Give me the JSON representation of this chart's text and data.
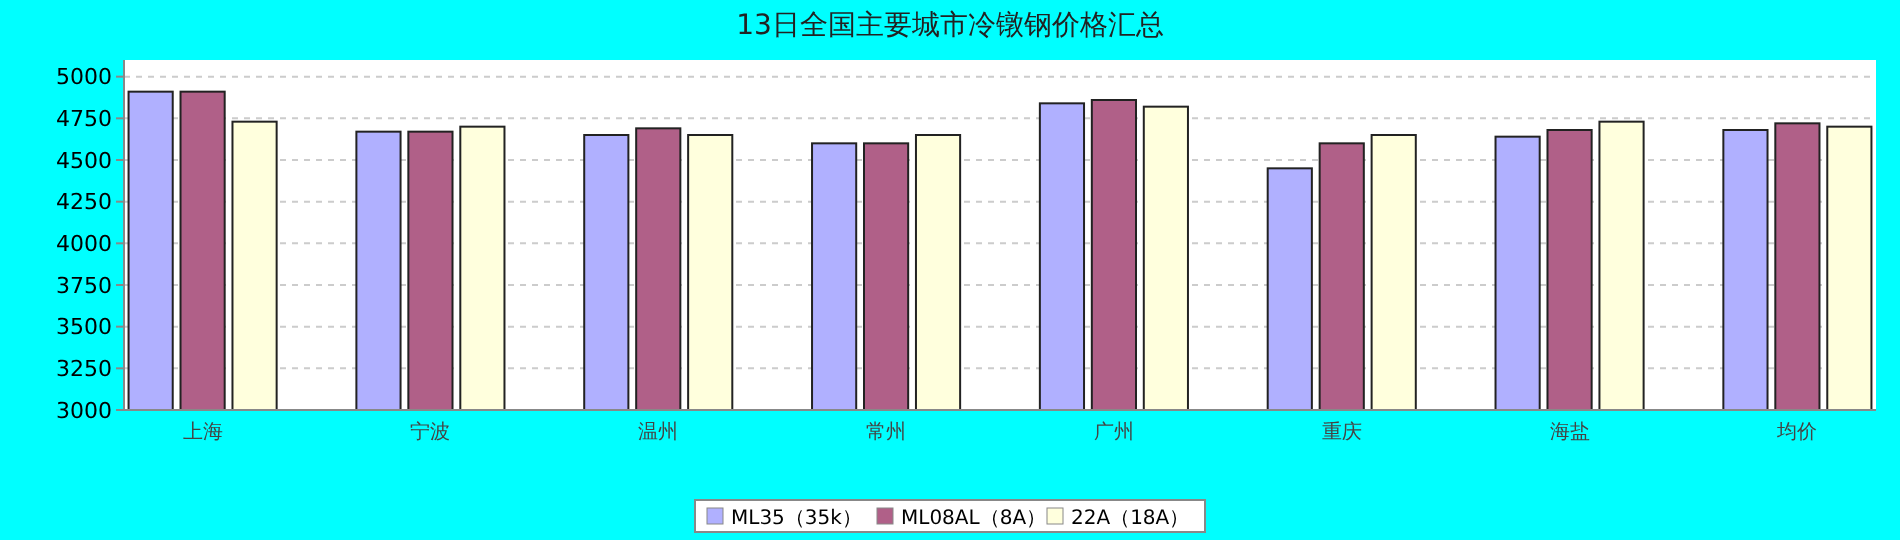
{
  "chart_data": {
    "type": "bar",
    "title": "13日全国主要城市冷镦钢价格汇总",
    "categories": [
      "上海",
      "宁波",
      "温州",
      "常州",
      "广州",
      "重庆",
      "海盐",
      "均价"
    ],
    "series": [
      {
        "name": "ML35（35k）",
        "color": "#b0b0ff",
        "values": [
          4910,
          4670,
          4650,
          4600,
          4840,
          4450,
          4640,
          4680
        ]
      },
      {
        "name": "ML08AL（8A）",
        "color": "#b06088",
        "values": [
          4910,
          4670,
          4690,
          4600,
          4860,
          4600,
          4680,
          4720
        ]
      },
      {
        "name": "22A（18A）",
        "color": "#ffffdd",
        "values": [
          4730,
          4700,
          4650,
          4650,
          4820,
          4650,
          4730,
          4700
        ]
      }
    ],
    "ylim": [
      3000,
      5100
    ],
    "yticks": [
      3000,
      3250,
      3500,
      3750,
      4000,
      4250,
      4500,
      4750,
      5000
    ],
    "grid": "y",
    "legend": "bottom"
  }
}
